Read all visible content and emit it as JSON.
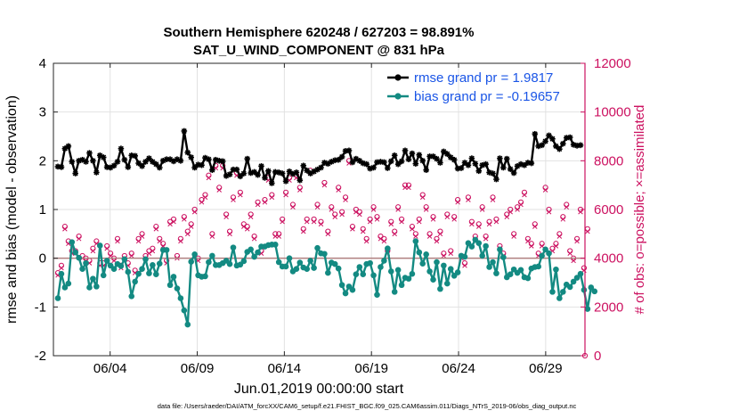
{
  "chart_data": {
    "type": "line",
    "title": "Southern Hemisphere 620248 / 627203 = 98.891%",
    "subtitle": "SAT_U_WIND_COMPONENT @ 831 hPa",
    "ylabel": "rmse and bias (model - observation)",
    "y2label": "# of obs: o=possible; ×=assimilated",
    "xlabel": "Jun.01,2019 00:00:00 start",
    "footer": "data file: /Users/raeder/DAI/ATM_forcXX/CAM6_setup/f.e21.FHIST_BGC.f09_025.CAM6assim.011/Diags_NTrS_2019-06/obs_diag_output.nc",
    "ylim": [
      -2,
      4
    ],
    "y2lim": [
      0,
      12000
    ],
    "y_ticks": [
      "-2",
      "-1",
      "0",
      "1",
      "2",
      "3",
      "4"
    ],
    "y2_ticks": [
      "0",
      "2000",
      "4000",
      "6000",
      "8000",
      "10000",
      "12000"
    ],
    "x_tick_labels": [
      "06/04",
      "06/09",
      "06/14",
      "06/19",
      "06/24",
      "06/29"
    ],
    "legend_position": "top-right",
    "colors": {
      "rmse": "#000000",
      "bias": "#138a82",
      "obs": "#cc1160",
      "zero": "#b08080",
      "legend_text": "#1a55e6"
    },
    "series": [
      {
        "name": "rmse grand pr = 1.9817",
        "values": [
          1.88,
          1.87,
          2.25,
          2.3,
          1.98,
          1.74,
          2.0,
          2.02,
          1.98,
          2.16,
          2.0,
          1.76,
          2.11,
          2.07,
          1.87,
          1.86,
          1.9,
          1.98,
          2.25,
          2.02,
          1.87,
          2.11,
          2.1,
          1.95,
          1.89,
          1.98,
          2.05,
          1.98,
          1.93,
          1.86,
          2.0,
          2.03,
          2.03,
          1.99,
          2.03,
          2.0,
          2.61,
          2.17,
          2.07,
          1.86,
          1.92,
          1.91,
          2.06,
          2.03,
          1.81,
          2.02,
          2.0,
          1.99,
          1.69,
          1.72,
          1.82,
          1.82,
          1.68,
          1.74,
          2.04,
          1.75,
          1.77,
          1.71,
          1.89,
          1.65,
          1.79,
          1.54,
          1.77,
          1.76,
          1.74,
          1.58,
          1.78,
          1.73,
          1.76,
          1.6,
          1.9,
          1.8,
          1.74,
          1.78,
          1.82,
          1.86,
          1.96,
          1.94,
          1.98,
          2.01,
          2.02,
          2.08,
          2.2,
          2.21,
          1.97,
          2.04,
          2.0,
          1.95,
          1.93,
          1.84,
          1.86,
          1.97,
          1.98,
          1.97,
          1.85,
          1.99,
          2.11,
          1.93,
          1.99,
          2.21,
          2.03,
          2.15,
          1.94,
          2.12,
          2.0,
          1.81,
          2.09,
          2.09,
          2.04,
          1.96,
          2.19,
          2.14,
          2.07,
          2.02,
          1.84,
          1.85,
          1.96,
          1.91,
          2.05,
          1.94,
          1.79,
          1.91,
          1.93,
          1.76,
          1.74,
          1.62,
          2.05,
          1.86,
          2.04,
          1.83,
          1.75,
          1.89,
          1.93,
          1.91,
          1.96,
          1.95,
          2.55,
          2.3,
          2.32,
          2.4,
          2.52,
          2.45,
          2.3,
          2.24,
          2.35,
          2.47,
          2.48,
          2.33,
          2.31,
          2.32
        ],
        "marker": "asterisk"
      },
      {
        "name": "bias grand pr = -0.19657",
        "values": [
          -0.82,
          -0.32,
          -0.6,
          -0.52,
          0.33,
          0.12,
          0.01,
          -0.22,
          -0.1,
          -0.6,
          -0.42,
          -0.58,
          0.26,
          -0.35,
          -0.05,
          -0.15,
          -0.22,
          -0.12,
          -0.16,
          -0.02,
          -0.28,
          -0.78,
          -0.48,
          -0.32,
          -0.22,
          -0.02,
          -0.31,
          -0.14,
          -0.33,
          -0.11,
          0.17,
          0.17,
          -0.55,
          -0.38,
          -0.62,
          -0.82,
          -1.07,
          -1.36,
          -0.07,
          0.08,
          -0.35,
          -0.38,
          -0.37,
          -0.08,
          0.05,
          -0.14,
          -0.14,
          -0.1,
          -0.05,
          -0.12,
          0.22,
          -0.15,
          -0.13,
          -0.06,
          0.13,
          0.18,
          0.03,
          0.12,
          0.24,
          0.24,
          0.27,
          0.28,
          0.28,
          -0.08,
          -0.17,
          -0.17,
          0.0,
          -0.27,
          -0.22,
          -0.09,
          -0.19,
          -0.22,
          -0.05,
          -0.2,
          0.21,
          0.1,
          0.09,
          -0.3,
          -0.09,
          -0.12,
          -0.21,
          -0.55,
          -0.72,
          -0.58,
          -0.65,
          -0.33,
          -0.18,
          -0.33,
          -0.12,
          -0.1,
          -0.35,
          -0.75,
          -0.18,
          -0.05,
          0.2,
          -0.27,
          -0.69,
          -0.24,
          -0.55,
          -0.4,
          -0.42,
          -0.32,
          0.35,
          0.12,
          -0.11,
          0.08,
          -0.27,
          -0.44,
          -0.08,
          -0.63,
          -0.15,
          -0.52,
          -0.22,
          -0.36,
          -0.29,
          0.05,
          0.03,
          0.31,
          0.24,
          0.38,
          0.31,
          0.05,
          0.25,
          -0.18,
          -0.08,
          -0.31,
          0.18,
          0.02,
          -0.39,
          -0.33,
          -0.23,
          -0.3,
          -0.24,
          -0.39,
          -0.41,
          -0.21,
          -0.18,
          -0.17,
          0.05,
          0.18,
          0.1,
          -0.69,
          -0.23,
          -0.82,
          -0.69,
          -0.54,
          -0.59,
          -0.48,
          -0.4,
          -0.32,
          -0.65,
          -1.04,
          -0.6,
          -0.68
        ],
        "marker": "circle"
      }
    ],
    "obs_counts": {
      "possible": [
        3400,
        3700,
        5300,
        4700,
        4300,
        4300,
        4900,
        4100,
        4000,
        3900,
        4400,
        4700,
        3800,
        3800,
        4500,
        4200,
        4000,
        4800,
        3700,
        4100,
        3800,
        4200,
        3500,
        4800,
        5000,
        4100,
        4300,
        4400,
        5300,
        4800,
        4600,
        3900,
        5500,
        5600,
        4100,
        4800,
        5700,
        5100,
        5400,
        6000,
        4000,
        6400,
        6600,
        7400,
        5000,
        7800,
        6900,
        7800,
        5800,
        5100,
        6500,
        7500,
        6700,
        5400,
        5300,
        5800,
        4900,
        6300,
        4300,
        6400,
        7300,
        6600,
        5000,
        5000,
        5600,
        6700,
        7300,
        6200,
        7400,
        6900,
        5200,
        5600,
        7600,
        5600,
        6200,
        5500,
        7100,
        5100,
        6100,
        5800,
        6900,
        5900,
        6500,
        8000,
        5300,
        6000,
        5900,
        5200,
        4800,
        5600,
        6100,
        5700,
        4900,
        4800,
        4300,
        5500,
        5100,
        6100,
        5600,
        7000,
        7000,
        5300,
        5000,
        5600,
        6600,
        6100,
        5000,
        5700,
        4800,
        5100,
        4200,
        5800,
        4300,
        5700,
        6400,
        4100,
        3800,
        6500,
        5500,
        4900,
        5400,
        6100,
        4900,
        5500,
        6500,
        5600,
        4500,
        4200,
        5800,
        6000,
        5000,
        6100,
        6300,
        6700,
        4800,
        4600,
        5400,
        4200,
        4600,
        6900,
        6000,
        4400,
        4600,
        5000,
        5700,
        6200,
        4300,
        4000,
        4800,
        6000,
        3600,
        5200
      ],
      "assimilated": [
        3300,
        3600,
        5200,
        4600,
        4200,
        4200,
        4800,
        4000,
        3900,
        3800,
        4300,
        4600,
        3700,
        3700,
        4400,
        4100,
        3900,
        4700,
        3600,
        4000,
        3700,
        4100,
        3400,
        4700,
        4900,
        4000,
        4200,
        4300,
        5200,
        4700,
        4500,
        3800,
        5400,
        5500,
        4000,
        4700,
        5600,
        5000,
        5300,
        5900,
        3900,
        6300,
        6500,
        7300,
        4900,
        7700,
        6800,
        7700,
        5700,
        5000,
        6400,
        7400,
        6600,
        5300,
        5200,
        5700,
        4800,
        6200,
        4200,
        6300,
        7200,
        6500,
        4900,
        4900,
        5500,
        6600,
        7200,
        6100,
        7300,
        6800,
        5100,
        5500,
        7500,
        5500,
        6100,
        5400,
        7000,
        5000,
        6000,
        5700,
        6800,
        5800,
        6400,
        7900,
        5200,
        5900,
        5800,
        5100,
        4700,
        5500,
        6000,
        5600,
        4800,
        4700,
        4200,
        5400,
        5000,
        6000,
        5500,
        6900,
        6900,
        5200,
        4900,
        5500,
        6500,
        6000,
        4900,
        5600,
        4700,
        5000,
        4100,
        5700,
        4200,
        5600,
        6300,
        4000,
        3700,
        6400,
        5400,
        4800,
        5300,
        6000,
        4800,
        5400,
        6400,
        5500,
        4400,
        4100,
        5700,
        5900,
        4900,
        6000,
        6200,
        6600,
        4700,
        4500,
        5300,
        4100,
        4500,
        6800,
        5900,
        4300,
        4500,
        4900,
        5600,
        6100,
        4200,
        3900,
        4700,
        5900,
        3500,
        5100
      ]
    }
  }
}
